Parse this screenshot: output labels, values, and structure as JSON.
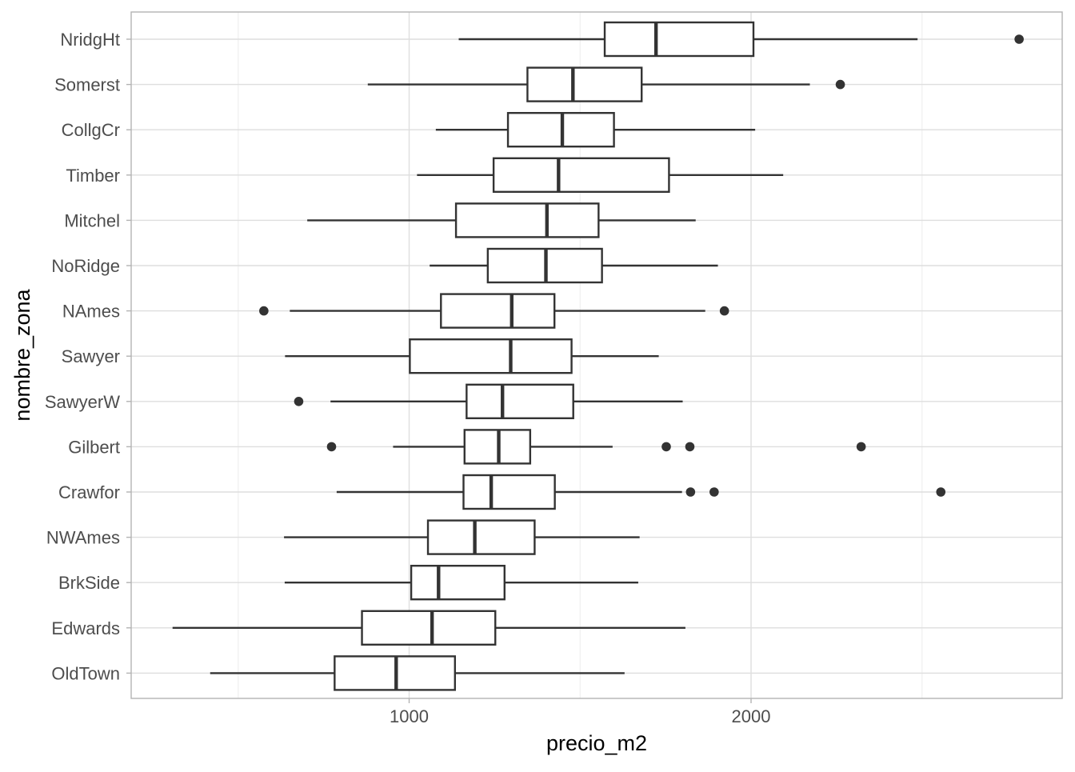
{
  "chart_data": {
    "type": "boxplot",
    "orientation": "horizontal",
    "xlabel": "precio_m2",
    "ylabel": "nombre_zona",
    "xlim": [
      187,
      2910
    ],
    "x_ticks": [
      1000,
      2000
    ],
    "x_tick_labels": [
      "1000",
      "2000"
    ],
    "x_minor_ticks": [
      500,
      1500,
      2500
    ],
    "grid": true,
    "theme": "light",
    "colors": {
      "box_stroke": "#333333",
      "grid_major": "#dedede",
      "grid_minor": "#efefef",
      "panel_border": "#b3b3b3"
    },
    "categories": [
      "NridgHt",
      "Somerst",
      "CollgCr",
      "Timber",
      "Mitchel",
      "NoRidge",
      "NAmes",
      "Sawyer",
      "SawyerW",
      "Gilbert",
      "Crawfor",
      "NWAmes",
      "BrkSide",
      "Edwards",
      "OldTown"
    ],
    "boxes": [
      {
        "category": "NridgHt",
        "whisker_low": 1145,
        "q1": 1572,
        "median": 1722,
        "q3": 2007,
        "whisker_high": 2487,
        "outliers": [
          2784
        ]
      },
      {
        "category": "Somerst",
        "whisker_low": 879,
        "q1": 1346,
        "median": 1479,
        "q3": 1680,
        "whisker_high": 2172,
        "outliers": [
          2261
        ]
      },
      {
        "category": "CollgCr",
        "whisker_low": 1078,
        "q1": 1289,
        "median": 1448,
        "q3": 1599,
        "whisker_high": 2012,
        "outliers": []
      },
      {
        "category": "Timber",
        "whisker_low": 1023,
        "q1": 1247,
        "median": 1437,
        "q3": 1760,
        "whisker_high": 2094,
        "outliers": []
      },
      {
        "category": "Mitchel",
        "whisker_low": 702,
        "q1": 1137,
        "median": 1403,
        "q3": 1554,
        "whisker_high": 1838,
        "outliers": []
      },
      {
        "category": "NoRidge",
        "whisker_low": 1060,
        "q1": 1230,
        "median": 1400,
        "q3": 1564,
        "whisker_high": 1903,
        "outliers": []
      },
      {
        "category": "NAmes",
        "whisker_low": 651,
        "q1": 1093,
        "median": 1300,
        "q3": 1425,
        "whisker_high": 1866,
        "outliers": [
          575,
          1922
        ]
      },
      {
        "category": "Sawyer",
        "whisker_low": 637,
        "q1": 1002,
        "median": 1297,
        "q3": 1475,
        "whisker_high": 1730,
        "outliers": []
      },
      {
        "category": "SawyerW",
        "whisker_low": 770,
        "q1": 1168,
        "median": 1273,
        "q3": 1480,
        "whisker_high": 1800,
        "outliers": [
          677
        ]
      },
      {
        "category": "Gilbert",
        "whisker_low": 953,
        "q1": 1162,
        "median": 1262,
        "q3": 1354,
        "whisker_high": 1595,
        "outliers": [
          773,
          1752,
          1821,
          2322
        ]
      },
      {
        "category": "Crawfor",
        "whisker_low": 788,
        "q1": 1159,
        "median": 1240,
        "q3": 1426,
        "whisker_high": 1798,
        "outliers": [
          1823,
          1892,
          2555
        ]
      },
      {
        "category": "NWAmes",
        "whisker_low": 634,
        "q1": 1055,
        "median": 1192,
        "q3": 1367,
        "whisker_high": 1674,
        "outliers": []
      },
      {
        "category": "BrkSide",
        "whisker_low": 636,
        "q1": 1006,
        "median": 1086,
        "q3": 1279,
        "whisker_high": 1670,
        "outliers": []
      },
      {
        "category": "Edwards",
        "whisker_low": 308,
        "q1": 862,
        "median": 1067,
        "q3": 1252,
        "whisker_high": 1808,
        "outliers": []
      },
      {
        "category": "OldTown",
        "whisker_low": 418,
        "q1": 782,
        "median": 962,
        "q3": 1134,
        "whisker_high": 1630,
        "outliers": []
      }
    ]
  }
}
